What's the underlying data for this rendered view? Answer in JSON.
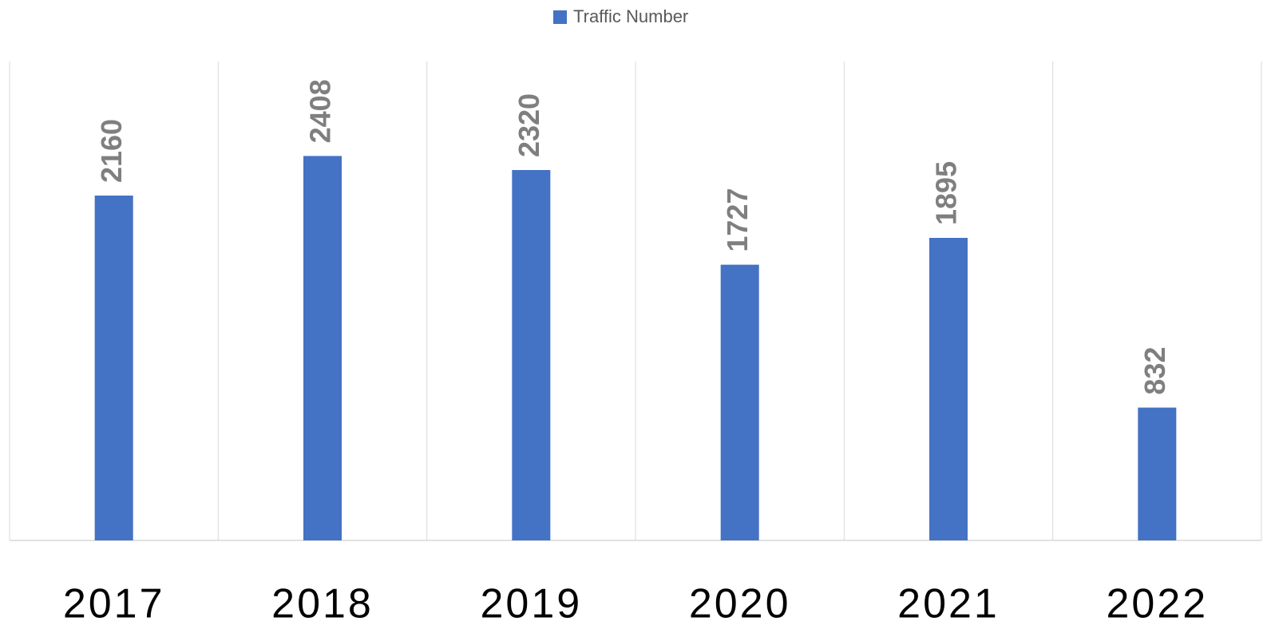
{
  "chart_data": {
    "type": "bar",
    "categories": [
      "2017",
      "2018",
      "2019",
      "2020",
      "2021",
      "2022"
    ],
    "series": [
      {
        "name": "Traffic Number",
        "color": "#4472c4",
        "values": [
          2160,
          2408,
          2320,
          1727,
          1895,
          832
        ]
      }
    ],
    "ylim": [
      0,
      3000
    ]
  }
}
